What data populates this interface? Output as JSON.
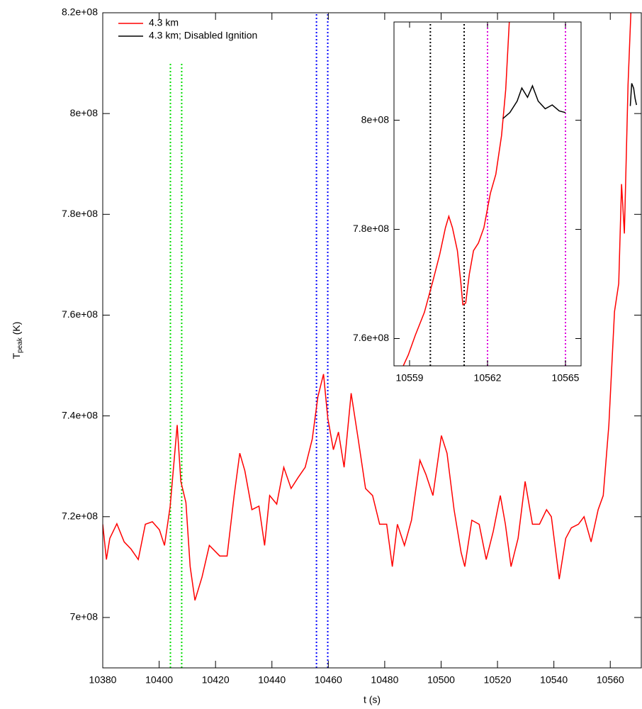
{
  "chart_data": [
    {
      "type": "line",
      "xlabel": "t (s)",
      "ylabel": [
        "T",
        "peak",
        " (K)"
      ],
      "xlim": [
        10380,
        10571
      ],
      "ylim": [
        690000000.0,
        820000000.0
      ],
      "xticks": [
        10380,
        10400,
        10420,
        10440,
        10460,
        10480,
        10500,
        10520,
        10540,
        10560
      ],
      "yticks": [
        {
          "value": 700000000.0,
          "label": "7e+08"
        },
        {
          "value": 720000000.0,
          "label": "7.2e+08"
        },
        {
          "value": 740000000.0,
          "label": "7.4e+08"
        },
        {
          "value": 760000000.0,
          "label": "7.6e+08"
        },
        {
          "value": 780000000.0,
          "label": "7.8e+08"
        },
        {
          "value": 800000000.0,
          "label": "8e+08"
        },
        {
          "value": 820000000.0,
          "label": "8.2e+08"
        }
      ],
      "legend": "upper left",
      "series": [
        {
          "name": "4.3 km",
          "color": "#ff0000",
          "x": [
            10380,
            10381.3,
            10382.5,
            10385,
            10387.6,
            10390,
            10392.6,
            10395.1,
            10397.6,
            10400.1,
            10401.9,
            10403.9,
            10406.4,
            10407.7,
            10409.5,
            10411,
            10412.7,
            10415.2,
            10417.8,
            10421.5,
            10424.1,
            10426.6,
            10428.6,
            10430.4,
            10432.9,
            10435.4,
            10437.4,
            10439.2,
            10441.7,
            10444.2,
            10446.8,
            10449.2,
            10451.8,
            10454.3,
            10456.3,
            10458.3,
            10459.8,
            10461.8,
            10463.6,
            10465.6,
            10468.1,
            10470.6,
            10473.2,
            10475.7,
            10478.2,
            10480.7,
            10482.7,
            10484.5,
            10487,
            10489.5,
            10492.5,
            10494.6,
            10497.1,
            10500.1,
            10502.1,
            10504.6,
            10507.1,
            10508.4,
            10510.9,
            10513.5,
            10516,
            10518.5,
            10521,
            10522.8,
            10524.8,
            10527.3,
            10529.8,
            10532.4,
            10534.9,
            10537.4,
            10539.1,
            10541.9,
            10544.2,
            10546.2,
            10548.7,
            10550.7,
            10553.2,
            10555.7,
            10557.5,
            10559.5,
            10561.5,
            10563,
            10564,
            10565,
            10566.3,
            10567.3
          ],
          "values": [
            718500000.0,
            711500000.0,
            715700000.0,
            718600000.0,
            715000000.0,
            713600000.0,
            711500000.0,
            718500000.0,
            719000000.0,
            717400000.0,
            714300000.0,
            722000000.0,
            738200000.0,
            727000000.0,
            722800000.0,
            710100000.0,
            703400000.0,
            708000000.0,
            714300000.0,
            712200000.0,
            712200000.0,
            724200000.0,
            732600000.0,
            729100000.0,
            721400000.0,
            722100000.0,
            714300000.0,
            724200000.0,
            722500000.0,
            729800000.0,
            725600000.0,
            727700000.0,
            729800000.0,
            735400000.0,
            743800000.0,
            748300000.0,
            739600000.0,
            733300000.0,
            736800000.0,
            729800000.0,
            744500000.0,
            735400000.0,
            725600000.0,
            724200000.0,
            718500000.0,
            718500000.0,
            710100000.0,
            718500000.0,
            714300000.0,
            719300000.0,
            731200000.0,
            728400000.0,
            724200000.0,
            736100000.0,
            732600000.0,
            721400000.0,
            712900000.0,
            710100000.0,
            719300000.0,
            718500000.0,
            711500000.0,
            717100000.0,
            724200000.0,
            718500000.0,
            710100000.0,
            715700000.0,
            727000000.0,
            718500000.0,
            718500000.0,
            721400000.0,
            720000000.0,
            707600000.0,
            715700000.0,
            717800000.0,
            718500000.0,
            720000000.0,
            715000000.0,
            721400000.0,
            724200000.0,
            738200000.0,
            760700000.0,
            766300000.0,
            786000000.0,
            776200000.0,
            805700000.0,
            820000000.0
          ]
        },
        {
          "name": "4.3 km; Disabled Ignition",
          "color": "#000000",
          "x": [
            10567.1,
            10567.6,
            10568.3,
            10568.8,
            10569.3
          ],
          "values": [
            801500000.0,
            806000000.0,
            805000000.0,
            803000000.0,
            801700000.0
          ]
        }
      ],
      "vlines": [
        {
          "x": 10404,
          "color": "#00dd00",
          "ymax": 810000000.0
        },
        {
          "x": 10408,
          "color": "#00dd00",
          "ymax": 810000000.0
        },
        {
          "x": 10455.8,
          "color": "#0000ff"
        },
        {
          "x": 10459.8,
          "color": "#0000ff"
        }
      ]
    },
    {
      "type": "line",
      "xlim": [
        10558.4,
        10565.6
      ],
      "ylim": [
        755000000.0,
        818000000.0
      ],
      "xticks": [
        10559,
        10562,
        10565
      ],
      "yticks": [
        {
          "value": 760000000.0,
          "label": "7.6e+08"
        },
        {
          "value": 780000000.0,
          "label": "7.8e+08"
        },
        {
          "value": 800000000.0,
          "label": "8e+08"
        }
      ],
      "series": [
        {
          "color": "#ff0000",
          "x": [
            10558.49,
            10558.68,
            10558.95,
            10559.22,
            10559.57,
            10559.89,
            10560.16,
            10560.38,
            10560.51,
            10560.65,
            10560.84,
            10560.97,
            10561.05,
            10561.16,
            10561.3,
            10561.46,
            10561.65,
            10561.86,
            10562.11,
            10562.32,
            10562.54,
            10562.7,
            10562.84
          ],
          "values": [
            752100000.0,
            754200000.0,
            757000000.0,
            760600000.0,
            764800000.0,
            770400000.0,
            775400000.0,
            780300000.0,
            782400000.0,
            780300000.0,
            776100000.0,
            770400000.0,
            766200000.0,
            766500000.0,
            771800000.0,
            776100000.0,
            777500000.0,
            780300000.0,
            786600000.0,
            790100000.0,
            797200000.0,
            805600000.0,
            818200000.0
          ]
        },
        {
          "color": "#000000",
          "x": [
            10562.59,
            10562.86,
            10563.14,
            10563.32,
            10563.54,
            10563.73,
            10563.95,
            10564.22,
            10564.49,
            10564.76,
            10565
          ],
          "values": [
            800300000.0,
            801400000.0,
            803500000.0,
            805900000.0,
            804200000.0,
            806300000.0,
            803500000.0,
            802100000.0,
            802800000.0,
            801700000.0,
            801400000.0
          ]
        }
      ],
      "vlines": [
        {
          "x": 10559.8,
          "color": "#000000"
        },
        {
          "x": 10561.1,
          "color": "#000000"
        },
        {
          "x": 10562,
          "color": "#dd00dd"
        },
        {
          "x": 10565,
          "color": "#dd00dd"
        }
      ]
    }
  ]
}
